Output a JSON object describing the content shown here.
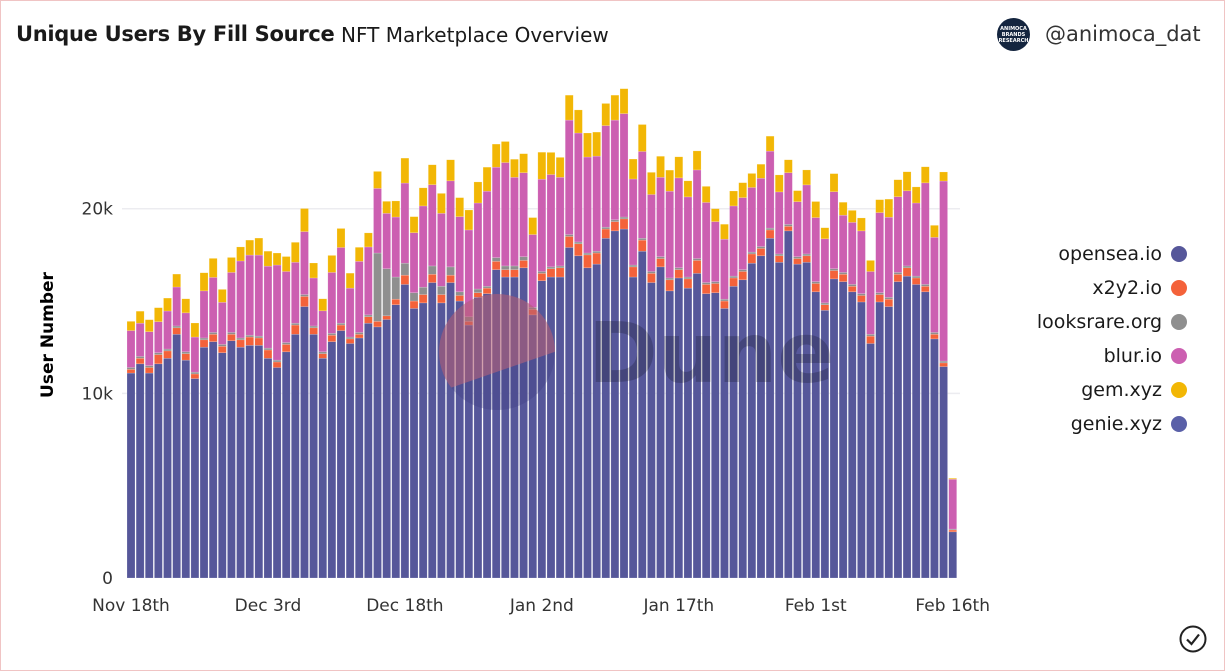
{
  "header": {
    "title": "Unique Users By Fill Source",
    "subtitle": "NFT Marketplace Overview",
    "handle": "@animoca_dat",
    "avatar_text": [
      "ANIMOCA",
      "BRANDS",
      "RESEARCH"
    ]
  },
  "watermark": "Dune",
  "chart_data": {
    "type": "bar",
    "stacked": true,
    "title": "Unique Users By Fill Source",
    "xlabel": "",
    "ylabel": "User Number",
    "ylim": [
      0,
      26700
    ],
    "yticks": [
      {
        "value": 0,
        "label": "0"
      },
      {
        "value": 10000,
        "label": "10k"
      },
      {
        "value": 20000,
        "label": "20k"
      }
    ],
    "x_start": "Nov 18th",
    "xticks": [
      {
        "index": 0,
        "label": "Nov 18th"
      },
      {
        "index": 15,
        "label": "Dec 3rd"
      },
      {
        "index": 30,
        "label": "Dec 18th"
      },
      {
        "index": 45,
        "label": "Jan 2nd"
      },
      {
        "index": 60,
        "label": "Jan 17th"
      },
      {
        "index": 75,
        "label": "Feb 1st"
      },
      {
        "index": 90,
        "label": "Feb 16th"
      }
    ],
    "grid": true,
    "legend_position": "right",
    "series": [
      {
        "name": "opensea.io",
        "color": "#56579a",
        "values": [
          11100,
          11600,
          11100,
          11600,
          11900,
          13200,
          11800,
          10800,
          12500,
          12800,
          12200,
          12850,
          12500,
          12600,
          12600,
          11900,
          11400,
          12250,
          13200,
          14700,
          13200,
          11900,
          12800,
          13400,
          12700,
          13000,
          13800,
          13600,
          14000,
          14800,
          15900,
          14600,
          14900,
          16000,
          14900,
          16000,
          15000,
          13700,
          15200,
          15400,
          16700,
          16300,
          16300,
          16800,
          14250,
          16100,
          16300,
          16300,
          17900,
          17450,
          16800,
          17000,
          18400,
          18800,
          18900,
          16300,
          17700,
          16000,
          16850,
          15550,
          16250,
          15700,
          16500,
          15400,
          15450,
          14600,
          15800,
          16150,
          17050,
          17450,
          18400,
          17100,
          18800,
          17000,
          17100,
          15500,
          14500,
          16200,
          16050,
          15500,
          14950,
          12700,
          14950,
          14700,
          16050,
          16350,
          15900,
          15500,
          12950,
          11450,
          2500
        ]
      },
      {
        "name": "x2y2.io",
        "color": "#f4623a",
        "values": [
          200,
          300,
          300,
          500,
          400,
          350,
          350,
          250,
          400,
          400,
          350,
          350,
          400,
          450,
          400,
          450,
          300,
          400,
          500,
          550,
          350,
          250,
          350,
          300,
          250,
          200,
          350,
          300,
          200,
          300,
          500,
          400,
          450,
          450,
          450,
          400,
          300,
          200,
          250,
          300,
          450,
          400,
          400,
          400,
          300,
          400,
          450,
          500,
          600,
          650,
          700,
          600,
          500,
          500,
          550,
          550,
          600,
          500,
          450,
          600,
          450,
          500,
          700,
          500,
          500,
          400,
          450,
          450,
          500,
          400,
          450,
          350,
          250,
          300,
          350,
          450,
          300,
          450,
          400,
          300,
          350,
          400,
          400,
          400,
          400,
          450,
          350,
          300,
          250,
          200,
          100
        ]
      },
      {
        "name": "looksrare.org",
        "color": "#8f8f8f",
        "values": [
          100,
          100,
          100,
          100,
          100,
          100,
          100,
          100,
          100,
          100,
          100,
          100,
          100,
          100,
          100,
          100,
          100,
          100,
          100,
          100,
          100,
          100,
          100,
          100,
          100,
          100,
          100,
          3700,
          2550,
          1200,
          650,
          450,
          400,
          450,
          450,
          450,
          200,
          250,
          200,
          100,
          200,
          200,
          200,
          200,
          100,
          100,
          100,
          100,
          100,
          100,
          100,
          100,
          100,
          100,
          100,
          100,
          100,
          100,
          100,
          100,
          100,
          100,
          100,
          100,
          100,
          100,
          100,
          100,
          100,
          100,
          100,
          100,
          100,
          100,
          100,
          100,
          100,
          100,
          100,
          100,
          100,
          100,
          100,
          100,
          100,
          100,
          100,
          100,
          100,
          100,
          50
        ]
      },
      {
        "name": "blur.io",
        "color": "#cc5fb1",
        "values": [
          2000,
          1800,
          1840,
          1680,
          2060,
          2110,
          2110,
          1900,
          2550,
          2980,
          2280,
          3250,
          4170,
          4340,
          4390,
          4440,
          5150,
          3850,
          3300,
          3410,
          2600,
          2220,
          3300,
          4100,
          2650,
          3850,
          3680,
          3500,
          3000,
          3250,
          4340,
          3250,
          4400,
          4400,
          3950,
          4660,
          4070,
          4700,
          4660,
          5150,
          4900,
          5600,
          4800,
          4550,
          3950,
          5000,
          5000,
          4800,
          6200,
          5900,
          5200,
          5150,
          5500,
          5400,
          5600,
          4660,
          4700,
          4170,
          4300,
          4700,
          4870,
          4340,
          4800,
          4340,
          3250,
          3250,
          3800,
          3900,
          3500,
          3700,
          4170,
          3360,
          2800,
          2980,
          3740,
          3470,
          3470,
          4170,
          3100,
          3360,
          3400,
          3400,
          4340,
          4340,
          4100,
          4070,
          3960,
          5500,
          5150,
          9750,
          2700
        ]
      },
      {
        "name": "gem.xyz",
        "color": "#f2b705",
        "values": [
          500,
          650,
          650,
          760,
          700,
          700,
          760,
          760,
          980,
          1030,
          700,
          810,
          760,
          810,
          920,
          810,
          650,
          810,
          1080,
          1250,
          810,
          650,
          920,
          1030,
          810,
          760,
          760,
          920,
          650,
          870,
          1350,
          870,
          980,
          1080,
          1080,
          1140,
          1030,
          1080,
          1140,
          1300,
          1250,
          1140,
          980,
          1030,
          920,
          1460,
          1200,
          1080,
          1350,
          1250,
          1300,
          1300,
          1200,
          1350,
          1350,
          1080,
          1460,
          1200,
          1140,
          1140,
          1140,
          870,
          1030,
          870,
          700,
          810,
          810,
          810,
          760,
          760,
          810,
          920,
          700,
          600,
          810,
          870,
          600,
          980,
          700,
          650,
          700,
          600,
          700,
          980,
          920,
          1030,
          870,
          870,
          650,
          490,
          50
        ]
      },
      {
        "name": "genie.xyz",
        "color": "#5a60a8",
        "values": []
      }
    ]
  }
}
